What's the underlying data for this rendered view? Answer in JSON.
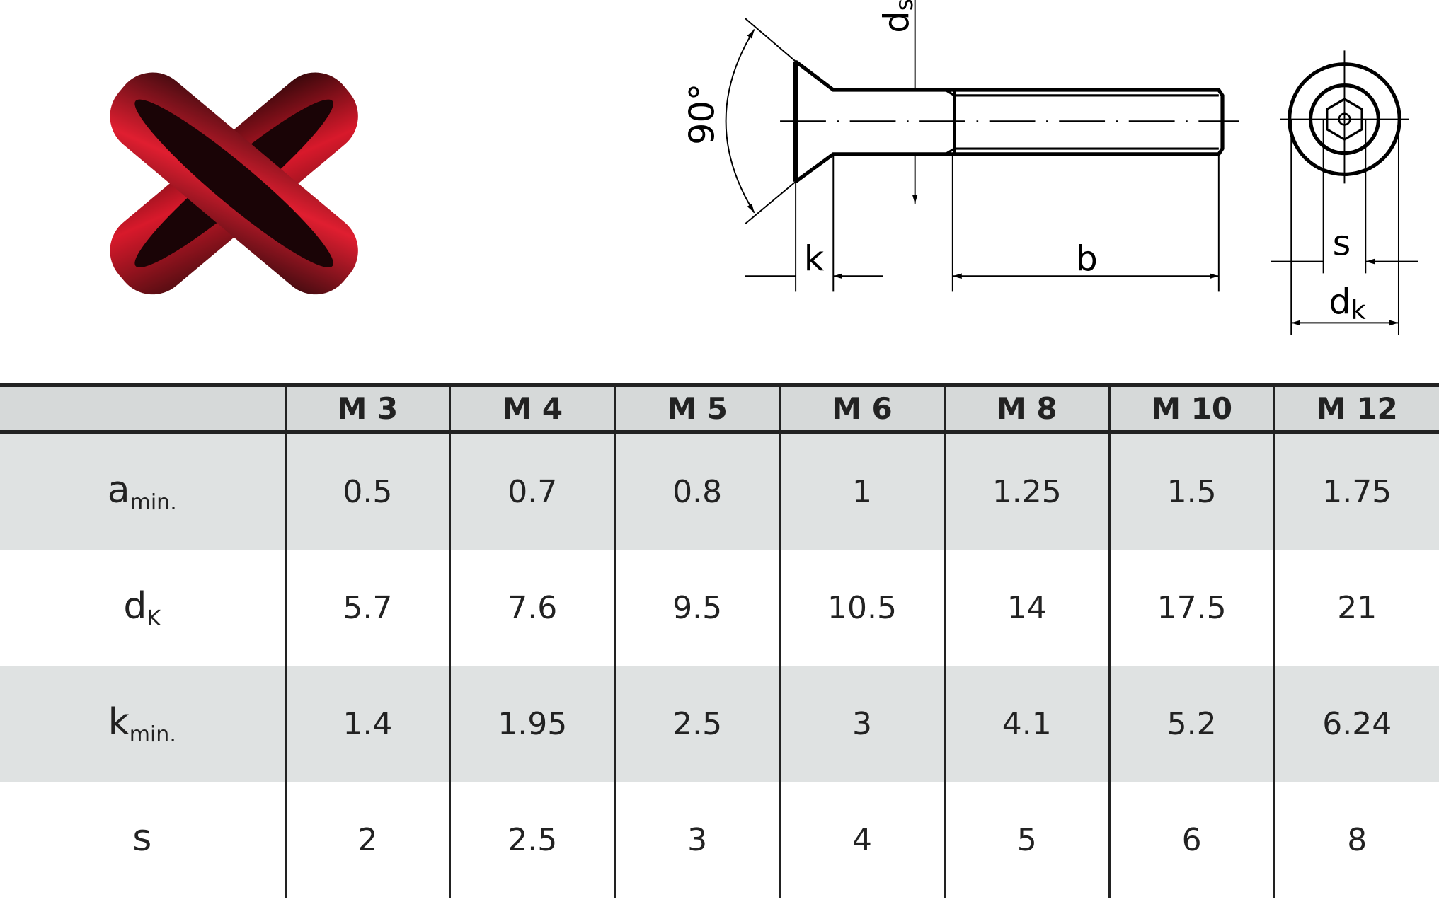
{
  "logo": {
    "name": "red-x-logo",
    "color": "#d4192b"
  },
  "drawing": {
    "labels": {
      "angle": "90°",
      "ds_main": "d",
      "ds_sub": "s",
      "k": "k",
      "b": "b",
      "s": "s",
      "dk_main": "d",
      "dk_sub": "k"
    }
  },
  "table": {
    "headers": [
      "",
      "M 3",
      "M 4",
      "M 5",
      "M 6",
      "M 8",
      "M 10",
      "M 12"
    ],
    "rows": [
      {
        "label": "a",
        "sub": "min.",
        "values": [
          "0.5",
          "0.7",
          "0.8",
          "1",
          "1.25",
          "1.5",
          "1.75"
        ]
      },
      {
        "label": "d",
        "sub": "K",
        "values": [
          "5.7",
          "7.6",
          "9.5",
          "10.5",
          "14",
          "17.5",
          "21"
        ]
      },
      {
        "label": "k",
        "sub": "min.",
        "values": [
          "1.4",
          "1.95",
          "2.5",
          "3",
          "4.1",
          "5.2",
          "6.24"
        ]
      },
      {
        "label": "s",
        "sub": "",
        "values": [
          "2",
          "2.5",
          "3",
          "4",
          "5",
          "6",
          "8"
        ]
      }
    ]
  },
  "colors": {
    "header_bg": "#d6d9d9",
    "row_alt_bg": "#dfe2e2",
    "lines": "#222222"
  }
}
